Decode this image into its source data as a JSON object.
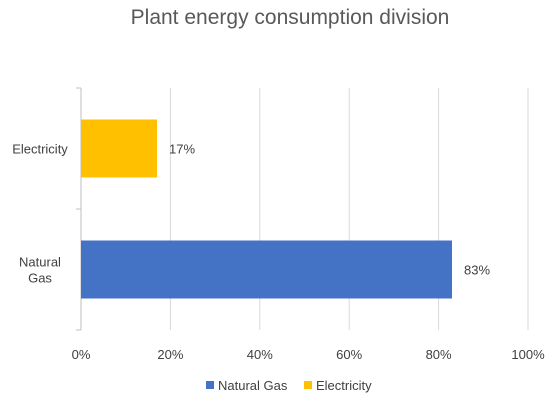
{
  "chart_data": {
    "type": "bar",
    "orientation": "horizontal",
    "title": "Plant energy consumption division",
    "categories": [
      "Natural Gas",
      "Electricity"
    ],
    "category_display": [
      [
        "Natural",
        "Gas"
      ],
      [
        "Electricity"
      ]
    ],
    "values": [
      83,
      17
    ],
    "value_labels": [
      "83%",
      "17%"
    ],
    "colors": [
      "#4472C4",
      "#FFC000"
    ],
    "xlim": [
      0,
      100
    ],
    "xticks": [
      0,
      20,
      40,
      60,
      80,
      100
    ],
    "xtick_labels": [
      "0%",
      "20%",
      "40%",
      "60%",
      "80%",
      "100%"
    ],
    "grid": true,
    "legend": {
      "position": "bottom",
      "entries": [
        {
          "name": "Natural Gas",
          "color": "#4472C4"
        },
        {
          "name": "Electricity",
          "color": "#FFC000"
        }
      ]
    }
  }
}
